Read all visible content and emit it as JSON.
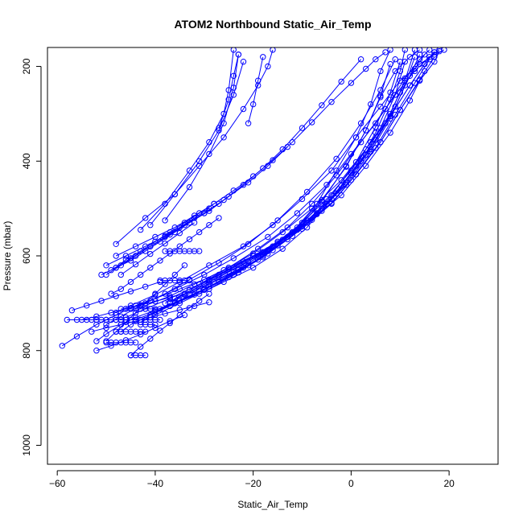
{
  "chart_data": {
    "type": "line",
    "title": "ATOM2 Northbound Static_Air_Temp",
    "xlabel": "Static_Air_Temp",
    "ylabel": "Pressure (mbar)",
    "xlim": [
      -62,
      30
    ],
    "ylim": [
      1040,
      160
    ],
    "y_reversed": true,
    "x_ticks": [
      -60,
      -40,
      -20,
      0,
      20
    ],
    "y_ticks": [
      200,
      400,
      600,
      800,
      1000
    ],
    "x_tick_labels": [
      "−60",
      "−40",
      "−20",
      "0",
      "20"
    ],
    "y_tick_labels": [
      "200",
      "400",
      "600",
      "800",
      "1000"
    ],
    "line_color": "#0000ff",
    "marker": "open-circle",
    "grid": false,
    "legend": "none",
    "series": [
      {
        "x": [
          -59,
          -56,
          -52,
          -48,
          -44,
          -40,
          -35,
          -30,
          -25,
          -20,
          -15,
          -10,
          -5,
          0,
          4,
          8,
          11,
          13
        ],
        "y": [
          790,
          770,
          745,
          725,
          705,
          690,
          670,
          650,
          625,
          600,
          570,
          530,
          480,
          420,
          360,
          300,
          230,
          165
        ]
      },
      {
        "x": [
          -52,
          -50,
          -47,
          -44,
          -40,
          -36,
          -31,
          -26,
          -20,
          -14,
          -9,
          -4,
          1,
          5,
          8,
          10,
          11
        ],
        "y": [
          780,
          765,
          745,
          730,
          715,
          700,
          680,
          655,
          625,
          585,
          540,
          480,
          410,
          340,
          270,
          210,
          165
        ]
      },
      {
        "x": [
          -47,
          -45,
          -41,
          -36,
          -30,
          -24,
          -18,
          -12,
          -7,
          -3,
          1,
          4,
          6,
          8
        ],
        "y": [
          760,
          745,
          725,
          700,
          672,
          640,
          600,
          550,
          490,
          420,
          350,
          280,
          210,
          165
        ]
      },
      {
        "x": [
          -43,
          -40,
          -35,
          -29,
          -23,
          -17,
          -11,
          -6,
          -1,
          3,
          6,
          9,
          12,
          14
        ],
        "y": [
          740,
          725,
          700,
          670,
          635,
          595,
          545,
          485,
          410,
          335,
          265,
          210,
          180,
          165
        ]
      },
      {
        "x": [
          -46,
          -42,
          -37,
          -31,
          -25,
          -19,
          -13,
          -8,
          -3,
          2,
          7,
          11,
          14,
          16
        ],
        "y": [
          730,
          712,
          690,
          660,
          625,
          585,
          540,
          490,
          430,
          360,
          290,
          225,
          185,
          165
        ]
      },
      {
        "x": [
          -48,
          -45,
          -40,
          -35,
          -29,
          -22,
          -16,
          -10,
          -4,
          1,
          6,
          10,
          14,
          17,
          19
        ],
        "y": [
          720,
          705,
          682,
          655,
          620,
          580,
          535,
          480,
          420,
          350,
          285,
          230,
          195,
          175,
          165
        ]
      },
      {
        "x": [
          -45,
          -41,
          -36,
          -30,
          -24,
          -17,
          -11,
          -5,
          0,
          5,
          9,
          13,
          16,
          18
        ],
        "y": [
          710,
          695,
          670,
          640,
          605,
          560,
          510,
          450,
          385,
          320,
          260,
          210,
          180,
          165
        ]
      },
      {
        "x": [
          -42,
          -37,
          -32,
          -26,
          -20,
          -14,
          -8,
          -2,
          3,
          8,
          12,
          15,
          17
        ],
        "y": [
          705,
          685,
          660,
          630,
          595,
          550,
          500,
          440,
          375,
          305,
          240,
          195,
          170
        ]
      },
      {
        "x": [
          -40,
          -36,
          -31,
          -25,
          -19,
          -13,
          -7,
          -2,
          3,
          7,
          10,
          13,
          15
        ],
        "y": [
          715,
          698,
          675,
          645,
          608,
          565,
          512,
          452,
          387,
          320,
          255,
          205,
          175
        ]
      },
      {
        "x": [
          -38,
          -34,
          -29,
          -23,
          -17,
          -11,
          -5,
          0,
          5,
          9,
          12,
          14
        ],
        "y": [
          700,
          682,
          658,
          628,
          590,
          545,
          490,
          425,
          355,
          285,
          220,
          175
        ]
      },
      {
        "x": [
          -36,
          -32,
          -27,
          -21,
          -15,
          -9,
          -3,
          2,
          6,
          9,
          11
        ],
        "y": [
          690,
          670,
          645,
          612,
          573,
          525,
          468,
          400,
          330,
          260,
          190
        ]
      },
      {
        "x": [
          -34,
          -30,
          -25,
          -19,
          -13,
          -7,
          -1,
          4,
          8,
          11,
          13
        ],
        "y": [
          680,
          660,
          633,
          600,
          560,
          510,
          450,
          380,
          310,
          240,
          180
        ]
      },
      {
        "x": [
          -50,
          -47,
          -43,
          -38,
          -33,
          -27,
          -21,
          -15,
          -9,
          -3,
          2,
          6,
          9
        ],
        "y": [
          745,
          728,
          705,
          680,
          650,
          615,
          575,
          525,
          465,
          395,
          320,
          250,
          185
        ]
      },
      {
        "x": [
          -44,
          -40,
          -35,
          -29,
          -23,
          -17,
          -11,
          -6,
          -1,
          3,
          6,
          8
        ],
        "y": [
          735,
          718,
          695,
          665,
          630,
          588,
          540,
          482,
          412,
          335,
          262,
          195
        ]
      },
      {
        "x": [
          -41,
          -37,
          -32,
          -27,
          -21,
          -15,
          -9,
          -4,
          1,
          5,
          8,
          10
        ],
        "y": [
          725,
          706,
          682,
          654,
          620,
          578,
          530,
          472,
          402,
          328,
          255,
          190
        ]
      },
      {
        "x": [
          -39,
          -35,
          -30,
          -24,
          -18,
          -12,
          -6,
          -1,
          4,
          8,
          12,
          15,
          17
        ],
        "y": [
          712,
          694,
          670,
          640,
          603,
          558,
          505,
          445,
          375,
          305,
          240,
          195,
          170
        ]
      },
      {
        "x": [
          -37,
          -33,
          -28,
          -22,
          -16,
          -10,
          -4,
          1,
          6,
          10,
          14,
          17,
          18
        ],
        "y": [
          698,
          680,
          655,
          625,
          588,
          543,
          490,
          428,
          360,
          292,
          230,
          190,
          168
        ]
      },
      {
        "x": [
          -33,
          -29,
          -24,
          -18,
          -12,
          -6,
          0,
          5,
          9,
          13,
          16
        ],
        "y": [
          672,
          652,
          625,
          592,
          550,
          500,
          440,
          372,
          302,
          235,
          185
        ]
      },
      {
        "x": [
          -31,
          -27,
          -22,
          -16,
          -10,
          -4,
          1,
          6,
          10,
          14,
          17
        ],
        "y": [
          660,
          640,
          612,
          580,
          538,
          488,
          428,
          360,
          292,
          228,
          180
        ]
      },
      {
        "x": [
          -29,
          -25,
          -20,
          -14,
          -8,
          -2,
          3,
          8,
          12,
          15
        ],
        "y": [
          650,
          628,
          600,
          566,
          524,
          472,
          410,
          340,
          272,
          210
        ]
      },
      {
        "x": [
          -50,
          -48,
          -46,
          -44,
          -42,
          -40,
          -38,
          -36,
          -34
        ],
        "y": [
          780,
          760,
          740,
          720,
          700,
          680,
          660,
          640,
          620
        ]
      },
      {
        "x": [
          -49,
          -47,
          -45,
          -43,
          -41,
          -39,
          -37,
          -35,
          -33,
          -31,
          -29,
          -27
        ],
        "y": [
          680,
          670,
          655,
          640,
          625,
          610,
          595,
          580,
          565,
          550,
          535,
          520
        ]
      },
      {
        "x": [
          -50,
          -47,
          -44,
          -41,
          -38,
          -35,
          -32,
          -29
        ],
        "y": [
          640,
          620,
          600,
          580,
          560,
          540,
          520,
          500
        ]
      },
      {
        "x": [
          -51,
          -48,
          -45,
          -42,
          -39,
          -36,
          -33,
          -30,
          -27
        ],
        "y": [
          640,
          625,
          610,
          590,
          570,
          550,
          530,
          510,
          490
        ]
      },
      {
        "x": [
          -48,
          -46,
          -43,
          -40,
          -37,
          -34,
          -31,
          -28
        ],
        "y": [
          625,
          608,
          590,
          570,
          550,
          530,
          510,
          490
        ]
      },
      {
        "x": [
          -47,
          -44,
          -41,
          -38,
          -35,
          -32
        ],
        "y": [
          640,
          618,
          596,
          574,
          552,
          530
        ]
      },
      {
        "x": [
          -49,
          -45,
          -41,
          -37,
          -33,
          -29,
          -25,
          -21,
          -17,
          -13
        ],
        "y": [
          630,
          605,
          580,
          555,
          530,
          505,
          475,
          445,
          410,
          370
        ]
      },
      {
        "x": [
          -48,
          -44,
          -40,
          -36,
          -32,
          -28,
          -24,
          -20,
          -16,
          -12,
          -8,
          -4,
          0,
          3,
          5,
          7
        ],
        "y": [
          600,
          580,
          560,
          540,
          515,
          490,
          462,
          432,
          398,
          360,
          318,
          275,
          235,
          205,
          185,
          170
        ]
      },
      {
        "x": [
          -50,
          -46,
          -42,
          -38,
          -34,
          -30,
          -26,
          -22,
          -18,
          -14,
          -10,
          -6,
          -2,
          2
        ],
        "y": [
          620,
          600,
          580,
          558,
          535,
          510,
          482,
          450,
          415,
          375,
          330,
          282,
          232,
          185
        ]
      },
      {
        "x": [
          -48,
          -42,
          -36,
          -31,
          -26,
          -22,
          -19,
          -17,
          -16
        ],
        "y": [
          575,
          520,
          470,
          410,
          350,
          290,
          240,
          200,
          165
        ]
      },
      {
        "x": [
          -43,
          -38,
          -33,
          -29,
          -26,
          -25,
          -24
        ],
        "y": [
          545,
          490,
          420,
          360,
          300,
          250,
          165
        ]
      },
      {
        "x": [
          -41,
          -36,
          -31,
          -27,
          -24,
          -22
        ],
        "y": [
          535,
          470,
          400,
          335,
          260,
          190
        ]
      },
      {
        "x": [
          -38,
          -33,
          -29,
          -26,
          -24,
          -23
        ],
        "y": [
          525,
          455,
          385,
          320,
          245,
          175
        ]
      },
      {
        "x": [
          -21,
          -20,
          -19,
          -18
        ],
        "y": [
          320,
          280,
          230,
          180
        ]
      },
      {
        "x": [
          -27,
          -25,
          -24,
          -23
        ],
        "y": [
          330,
          270,
          220,
          175
        ]
      },
      {
        "x": [
          -57,
          -54,
          -51,
          -48,
          -45,
          -42,
          -39
        ],
        "y": [
          715,
          705,
          695,
          685,
          675,
          665,
          655
        ]
      },
      {
        "x": [
          -55,
          -52,
          -49,
          -46,
          -43,
          -40,
          -37,
          -34
        ],
        "y": [
          735,
          728,
          720,
          712,
          704,
          696,
          688,
          680
        ]
      },
      {
        "x": [
          -53,
          -50,
          -47,
          -44,
          -41,
          -38,
          -35,
          -32,
          -29
        ],
        "y": [
          760,
          752,
          745,
          738,
          730,
          722,
          714,
          706,
          698
        ]
      },
      {
        "x": [
          -45,
          -43,
          -41,
          -39,
          -37,
          -35,
          -33,
          -31,
          -29
        ],
        "y": [
          810,
          792,
          775,
          758,
          742,
          725,
          710,
          695,
          680
        ]
      },
      {
        "x": [
          -52,
          -49,
          -46,
          -43,
          -40,
          -37,
          -34
        ],
        "y": [
          800,
          790,
          778,
          766,
          752,
          738,
          725
        ]
      },
      {
        "x": [
          -58,
          -56,
          -54,
          -52,
          -50,
          -48,
          -46
        ],
        "y": [
          735,
          735,
          735,
          735,
          735,
          735,
          735
        ]
      },
      {
        "x": [
          -53,
          -52,
          -51,
          -50,
          -49,
          -48,
          -47,
          -46
        ],
        "y": [
          735,
          735,
          735,
          735,
          735,
          735,
          735,
          735
        ]
      },
      {
        "x": [
          -47,
          -46,
          -45,
          -44,
          -43,
          -42,
          -41,
          -40,
          -39
        ],
        "y": [
          735,
          735,
          735,
          735,
          735,
          735,
          735,
          735,
          735
        ]
      },
      {
        "x": [
          -47,
          -46,
          -45,
          -44,
          -43,
          -42,
          -41,
          -40
        ],
        "y": [
          712,
          712,
          712,
          712,
          712,
          712,
          712,
          712
        ]
      },
      {
        "x": [
          -38,
          -37,
          -36,
          -35,
          -34,
          -33,
          -32,
          -31
        ],
        "y": [
          590,
          590,
          590,
          590,
          590,
          590,
          590,
          590
        ]
      },
      {
        "x": [
          -39,
          -38,
          -37,
          -36,
          -35,
          -34,
          -33
        ],
        "y": [
          652,
          652,
          652,
          652,
          652,
          652,
          652
        ]
      },
      {
        "x": [
          -48,
          -47,
          -46,
          -45,
          -44,
          -43,
          -42
        ],
        "y": [
          760,
          760,
          760,
          760,
          760,
          760,
          760
        ]
      },
      {
        "x": [
          -50,
          -49,
          -48,
          -47,
          -46,
          -45,
          -44
        ],
        "y": [
          783,
          783,
          783,
          783,
          783,
          783,
          783
        ]
      },
      {
        "x": [
          -45,
          -44,
          -43,
          -42
        ],
        "y": [
          810,
          810,
          810,
          810
        ]
      },
      {
        "x": [
          -43,
          -42,
          -41,
          -40
        ],
        "y": [
          745,
          745,
          745,
          745
        ]
      }
    ]
  }
}
